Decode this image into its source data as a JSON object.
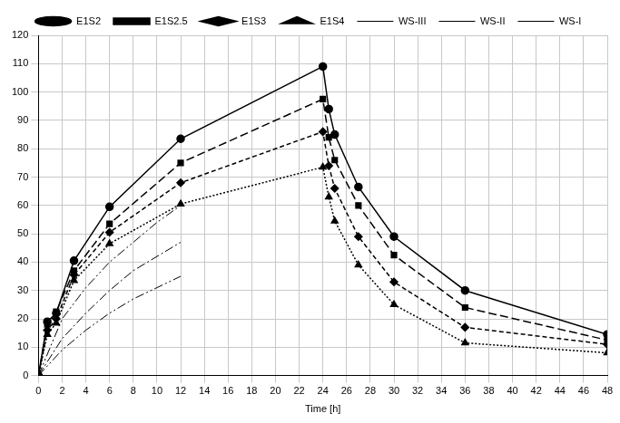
{
  "chart_data": {
    "type": "line",
    "x_label": "Time [h]",
    "xlim": [
      0,
      48
    ],
    "xticks": [
      0,
      2,
      4,
      6,
      8,
      10,
      12,
      14,
      16,
      18,
      20,
      22,
      24,
      26,
      28,
      30,
      32,
      34,
      36,
      38,
      40,
      42,
      44,
      46,
      48
    ],
    "ylim": [
      0,
      120
    ],
    "yticks": [
      0,
      10,
      20,
      30,
      40,
      50,
      60,
      70,
      80,
      90,
      100,
      110,
      120
    ],
    "grid": true,
    "legend": "top",
    "series": [
      {
        "name": "E1S2",
        "color": "#000000",
        "marker": "circle",
        "line_style": "solid",
        "x": [
          0,
          0.75,
          1.5,
          3,
          6,
          12,
          24,
          24.5,
          25,
          27,
          30,
          36,
          48
        ],
        "values": [
          0,
          19,
          22,
          40.5,
          59.5,
          83.5,
          109,
          94,
          85,
          66.5,
          49,
          30,
          14.5
        ]
      },
      {
        "name": "E1S2.5",
        "color": "#000000",
        "marker": "square",
        "line_style": "dashed",
        "x": [
          0,
          0.75,
          1.5,
          3,
          6,
          12,
          24,
          24.5,
          25,
          27,
          30,
          36,
          48
        ],
        "values": [
          0,
          18,
          22.5,
          37,
          53.5,
          75,
          97.5,
          84,
          76,
          60,
          42.5,
          24,
          12.5
        ]
      },
      {
        "name": "E1S3",
        "color": "#000000",
        "marker": "diamond",
        "line_style": "short_dashed",
        "x": [
          0,
          0.75,
          1.5,
          3,
          6,
          12,
          24,
          24.5,
          25,
          27,
          30,
          36,
          48
        ],
        "values": [
          0,
          16,
          20,
          35.5,
          50.5,
          68,
          86,
          74,
          66,
          49,
          33,
          17,
          11
        ]
      },
      {
        "name": "E1S4",
        "color": "#000000",
        "marker": "triangle",
        "line_style": "dotted",
        "x": [
          0,
          0.75,
          1.5,
          3,
          6,
          12,
          24,
          24.5,
          25,
          27,
          30,
          36,
          48
        ],
        "values": [
          0,
          14.5,
          18.5,
          33.5,
          46.5,
          60.5,
          73.5,
          63,
          54.5,
          39,
          25,
          11.5,
          8
        ]
      },
      {
        "name": "WS-III",
        "color": "#000000",
        "marker": "none",
        "line_style": "dash_dot_dot",
        "x": [
          0,
          2,
          4,
          6,
          8,
          10,
          12
        ],
        "values": [
          0,
          20,
          31,
          40,
          47,
          54,
          60
        ]
      },
      {
        "name": "WS-II",
        "color": "#000000",
        "marker": "none",
        "line_style": "dash_dot",
        "x": [
          0,
          2,
          4,
          6,
          8,
          10,
          12
        ],
        "values": [
          0,
          13,
          22,
          30,
          37,
          42,
          47
        ]
      },
      {
        "name": "WS-I",
        "color": "#000000",
        "marker": "none",
        "line_style": "dash_dot_dot",
        "x": [
          0,
          2,
          4,
          6,
          8,
          10,
          12
        ],
        "values": [
          0,
          9,
          16,
          22,
          27,
          31,
          35
        ]
      }
    ]
  }
}
